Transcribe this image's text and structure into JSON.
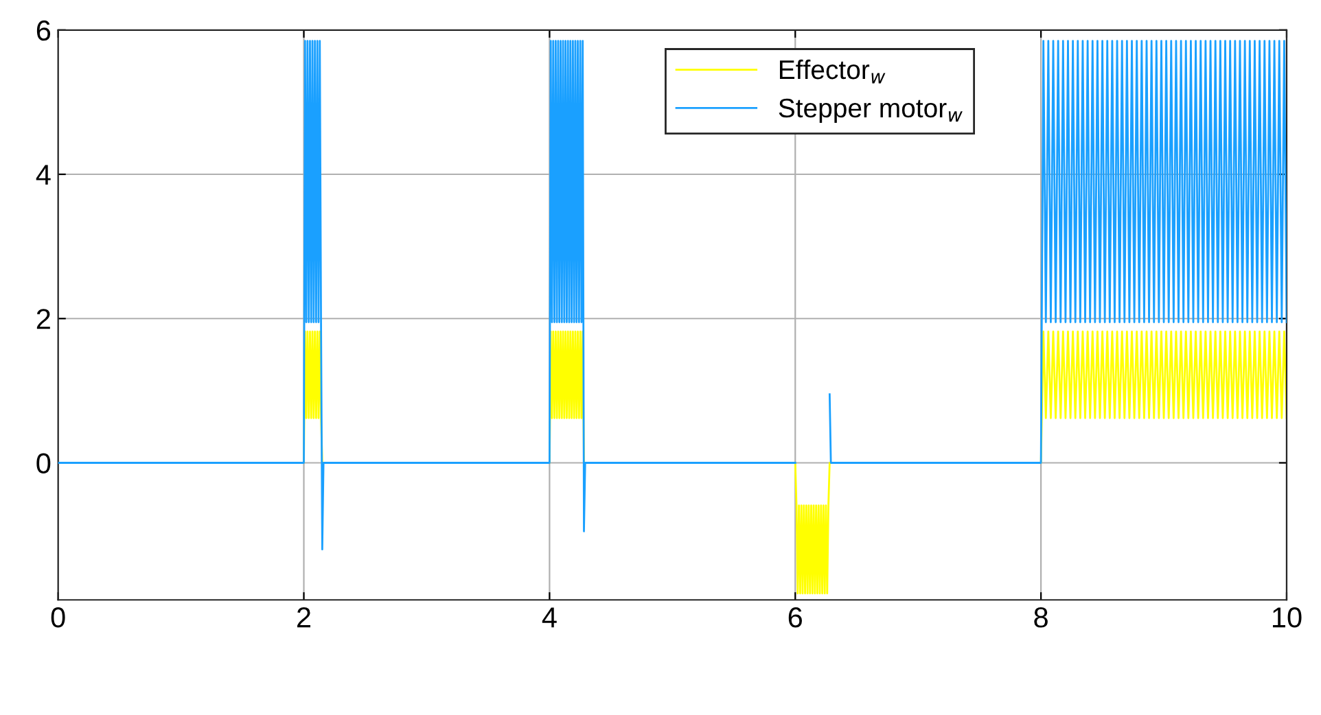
{
  "chart_data": {
    "type": "line",
    "series": [
      {
        "name": "Effector$_{w}$",
        "color": "#ffff00",
        "x": [
          0,
          2,
          2.01,
          2.02,
          2.03,
          2.04,
          2.05,
          2.06,
          2.07,
          2.08,
          2.09,
          2.1,
          2.11,
          2.12,
          2.13,
          2.14,
          2.15,
          4,
          4.01,
          4.02,
          4.03,
          4.04,
          4.05,
          4.06,
          4.07,
          4.08,
          4.09,
          4.1,
          4.11,
          4.12,
          4.13,
          4.14,
          4.15,
          4.16,
          4.17,
          4.18,
          4.19,
          4.2,
          4.21,
          4.22,
          4.23,
          4.24,
          4.25,
          4.26,
          4.27,
          4.28,
          6,
          6.01,
          6.02,
          6.03,
          6.04,
          6.05,
          6.06,
          6.07,
          6.08,
          6.09,
          6.1,
          6.11,
          6.12,
          6.13,
          6.14,
          6.15,
          6.16,
          6.17,
          6.18,
          6.19,
          6.2,
          6.21,
          6.22,
          6.23,
          6.24,
          6.25,
          6.26,
          6.27,
          6.28,
          8,
          8.02,
          8.04,
          8.06,
          8.08,
          8.1,
          8.12,
          8.14,
          8.16,
          8.18,
          8.2,
          8.22,
          8.24,
          8.26,
          8.28,
          8.3,
          8.32,
          8.34,
          8.36,
          8.38,
          8.4,
          8.42,
          8.44,
          8.46,
          8.48,
          8.5,
          8.52,
          8.54,
          8.56,
          8.58,
          8.6,
          8.62,
          8.64,
          8.66,
          8.68,
          8.7,
          8.72,
          8.74,
          8.76,
          8.78,
          8.8,
          8.82,
          8.84,
          8.86,
          8.88,
          8.9,
          8.92,
          8.94,
          8.96,
          8.98,
          9,
          9.02,
          9.04,
          9.06,
          9.08,
          9.1,
          9.12,
          9.14,
          9.16,
          9.18,
          9.2,
          9.22,
          9.24,
          9.26,
          9.28,
          9.3,
          9.32,
          9.34,
          9.36,
          9.38,
          9.4,
          9.42,
          9.44,
          9.46,
          9.48,
          9.5,
          9.52,
          9.54,
          9.56,
          9.58,
          9.6,
          9.62,
          9.64,
          9.66,
          9.68,
          9.7,
          9.72,
          9.74,
          9.76,
          9.78,
          9.8,
          9.82,
          9.84,
          9.86,
          9.88,
          9.9,
          9.92,
          9.94,
          9.96,
          9.98,
          10
        ],
        "values": [
          0,
          0,
          1.82,
          0.62,
          1.82,
          0.62,
          1.82,
          0.62,
          1.82,
          0.62,
          1.82,
          0.62,
          1.82,
          0.62,
          1.82,
          0.62,
          0,
          0,
          1.82,
          0.62,
          1.82,
          0.62,
          1.82,
          0.62,
          1.82,
          0.62,
          1.82,
          0.62,
          1.82,
          0.62,
          1.82,
          0.62,
          1.82,
          0.62,
          1.82,
          0.62,
          1.82,
          0.62,
          1.82,
          0.62,
          1.82,
          0.62,
          1.82,
          0.62,
          1.82,
          0,
          0,
          -0.59,
          -1.81,
          -0.59,
          -1.81,
          -0.59,
          -1.81,
          -0.59,
          -1.81,
          -0.59,
          -1.81,
          -0.59,
          -1.81,
          -0.59,
          -1.81,
          -0.59,
          -1.81,
          -0.59,
          -1.81,
          -0.59,
          -1.81,
          -0.59,
          -1.81,
          -0.59,
          -1.81,
          -0.59,
          -1.81,
          -0.59,
          0,
          0,
          1.82,
          0.62,
          1.82,
          0.62,
          1.82,
          0.62,
          1.82,
          0.62,
          1.82,
          0.62,
          1.82,
          0.62,
          1.82,
          0.62,
          1.82,
          0.62,
          1.82,
          0.62,
          1.82,
          0.62,
          1.82,
          0.62,
          1.82,
          0.62,
          1.82,
          0.62,
          1.82,
          0.62,
          1.82,
          0.62,
          1.82,
          0.62,
          1.82,
          0.62,
          1.82,
          0.62,
          1.82,
          0.62,
          1.82,
          0.62,
          1.82,
          0.62,
          1.82,
          0.62,
          1.82,
          0.62,
          1.82,
          0.62,
          1.82,
          0.62,
          1.82,
          0.62,
          1.82,
          0.62,
          1.82,
          0.62,
          1.82,
          0.62,
          1.82,
          0.62,
          1.82,
          0.62,
          1.82,
          0.62,
          1.82,
          0.62,
          1.82,
          0.62,
          1.82,
          0.62,
          1.82,
          0.62,
          1.82,
          0.62,
          1.82,
          0.62,
          1.82,
          0.62,
          1.82,
          0.62,
          1.82,
          0.62,
          1.82,
          0.62,
          1.82,
          0.62,
          1.82,
          0.62,
          1.82,
          0.62,
          1.82,
          0.62,
          1.82,
          0.62,
          1.82,
          0.62,
          1.82,
          0.62,
          1.82,
          0.62
        ]
      },
      {
        "name": "Stepper motor$_{w}$",
        "color": "#1aa0ff",
        "x": [
          0,
          2,
          2.01,
          2.02,
          2.03,
          2.04,
          2.05,
          2.06,
          2.07,
          2.08,
          2.09,
          2.1,
          2.11,
          2.12,
          2.13,
          2.14,
          2.15,
          2.16,
          4,
          4.01,
          4.02,
          4.03,
          4.04,
          4.05,
          4.06,
          4.07,
          4.08,
          4.09,
          4.1,
          4.11,
          4.12,
          4.13,
          4.14,
          4.15,
          4.16,
          4.17,
          4.18,
          4.19,
          4.2,
          4.21,
          4.22,
          4.23,
          4.24,
          4.25,
          4.26,
          4.27,
          4.28,
          4.29,
          6,
          6.01,
          6.27,
          6.28,
          6.29,
          8,
          8.02,
          8.04,
          8.06,
          8.08,
          8.1,
          8.12,
          8.14,
          8.16,
          8.18,
          8.2,
          8.22,
          8.24,
          8.26,
          8.28,
          8.3,
          8.32,
          8.34,
          8.36,
          8.38,
          8.4,
          8.42,
          8.44,
          8.46,
          8.48,
          8.5,
          8.52,
          8.54,
          8.56,
          8.58,
          8.6,
          8.62,
          8.64,
          8.66,
          8.68,
          8.7,
          8.72,
          8.74,
          8.76,
          8.78,
          8.8,
          8.82,
          8.84,
          8.86,
          8.88,
          8.9,
          8.92,
          8.94,
          8.96,
          8.98,
          9,
          9.02,
          9.04,
          9.06,
          9.08,
          9.1,
          9.12,
          9.14,
          9.16,
          9.18,
          9.2,
          9.22,
          9.24,
          9.26,
          9.28,
          9.3,
          9.32,
          9.34,
          9.36,
          9.38,
          9.4,
          9.42,
          9.44,
          9.46,
          9.48,
          9.5,
          9.52,
          9.54,
          9.56,
          9.58,
          9.6,
          9.62,
          9.64,
          9.66,
          9.68,
          9.7,
          9.72,
          9.74,
          9.76,
          9.78,
          9.8,
          9.82,
          9.84,
          9.86,
          9.88,
          9.9,
          9.92,
          9.94,
          9.96,
          9.98,
          10
        ],
        "values": [
          0,
          0,
          5.85,
          1.95,
          5.85,
          1.95,
          5.85,
          1.95,
          5.85,
          1.95,
          5.85,
          1.95,
          5.85,
          1.95,
          5.85,
          1.95,
          -1.2,
          0,
          0,
          5.85,
          1.95,
          5.85,
          1.95,
          5.85,
          1.95,
          5.85,
          1.95,
          5.85,
          1.95,
          5.85,
          1.95,
          5.85,
          1.95,
          5.85,
          1.95,
          5.85,
          1.95,
          5.85,
          1.95,
          5.85,
          1.95,
          5.85,
          1.95,
          5.85,
          1.95,
          5.85,
          -0.95,
          0,
          0,
          null,
          null,
          0.95,
          0,
          0,
          5.85,
          1.95,
          5.85,
          1.95,
          5.85,
          1.95,
          5.85,
          1.95,
          5.85,
          1.95,
          5.85,
          1.95,
          5.85,
          1.95,
          5.85,
          1.95,
          5.85,
          1.95,
          5.85,
          1.95,
          5.85,
          1.95,
          5.85,
          1.95,
          5.85,
          1.95,
          5.85,
          1.95,
          5.85,
          1.95,
          5.85,
          1.95,
          5.85,
          1.95,
          5.85,
          1.95,
          5.85,
          1.95,
          5.85,
          1.95,
          5.85,
          1.95,
          5.85,
          1.95,
          5.85,
          1.95,
          5.85,
          1.95,
          5.85,
          1.95,
          5.85,
          1.95,
          5.85,
          1.95,
          5.85,
          1.95,
          5.85,
          1.95,
          5.85,
          1.95,
          5.85,
          1.95,
          5.85,
          1.95,
          5.85,
          1.95,
          5.85,
          1.95,
          5.85,
          1.95,
          5.85,
          1.95,
          5.85,
          1.95,
          5.85,
          1.95,
          5.85,
          1.95,
          5.85,
          1.95,
          5.85,
          1.95,
          5.85,
          1.95,
          5.85,
          1.95,
          5.85,
          1.95,
          5.85,
          1.95,
          5.85,
          1.95,
          5.85,
          1.95,
          5.85,
          1.95,
          5.85,
          1.95,
          5.85,
          1.95
        ]
      }
    ],
    "xlim": [
      0,
      10
    ],
    "xticks": [
      0,
      2,
      4,
      6,
      8,
      10
    ],
    "ylim": [
      -1.9,
      6
    ],
    "yticks": [
      0,
      2,
      4,
      6
    ],
    "grid": true,
    "legend": "top",
    "marker": "none",
    "line_style": "solid"
  }
}
